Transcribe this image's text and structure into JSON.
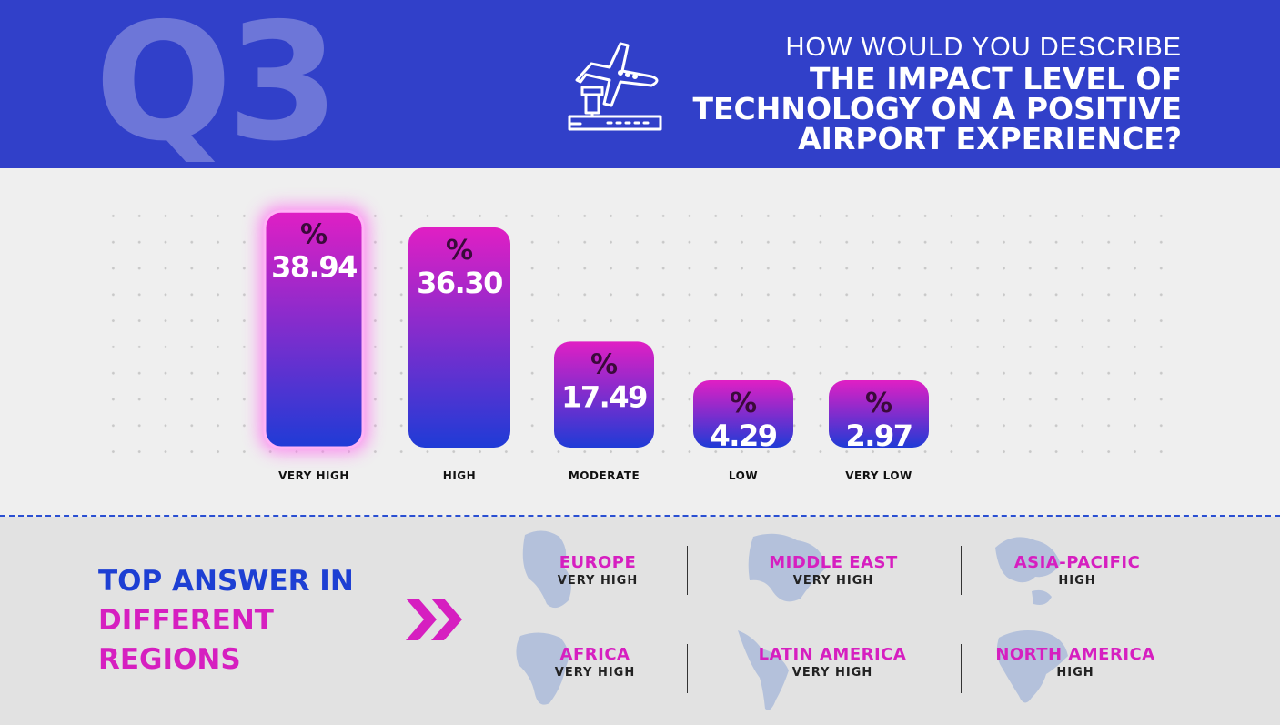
{
  "header": {
    "badge": "Q3",
    "question_line1": "HOW WOULD YOU DESCRIBE",
    "question_line2": "THE IMPACT LEVEL OF",
    "question_line3": "TECHNOLOGY ON A POSITIVE",
    "question_line4": "AIRPORT EXPERIENCE?",
    "icon": "airplane-airport-icon"
  },
  "chart_data": {
    "type": "bar",
    "categories": [
      "VERY HIGH",
      "HIGH",
      "MODERATE",
      "LOW",
      "VERY LOW"
    ],
    "values": [
      38.94,
      36.3,
      17.49,
      4.29,
      2.97
    ],
    "value_labels": [
      "38.94",
      "36.30",
      "17.49",
      "4.29",
      "2.97"
    ],
    "unit_symbol": "%",
    "highlighted_index": 0,
    "colors": {
      "top": "#e01fc4",
      "bottom": "#1f3bd6",
      "glow": "#ff6bf0"
    },
    "grid": "dotted"
  },
  "regions": {
    "heading_line1": "TOP ANSWER IN",
    "heading_line2": "DIFFERENT",
    "heading_line3": "REGIONS",
    "chevron_icon": "double-chevron-right-icon",
    "items": [
      {
        "name": "EUROPE",
        "answer": "VERY HIGH",
        "map_icon": "europe-map-icon"
      },
      {
        "name": "MIDDLE EAST",
        "answer": "VERY HIGH",
        "map_icon": "middle-east-map-icon"
      },
      {
        "name": "ASIA-PACIFIC",
        "answer": "HIGH",
        "map_icon": "asia-pacific-map-icon"
      },
      {
        "name": "AFRICA",
        "answer": "VERY HIGH",
        "map_icon": "africa-map-icon"
      },
      {
        "name": "LATIN AMERICA",
        "answer": "VERY HIGH",
        "map_icon": "latin-america-map-icon"
      },
      {
        "name": "NORTH AMERICA",
        "answer": "HIGH",
        "map_icon": "north-america-map-icon"
      }
    ]
  }
}
